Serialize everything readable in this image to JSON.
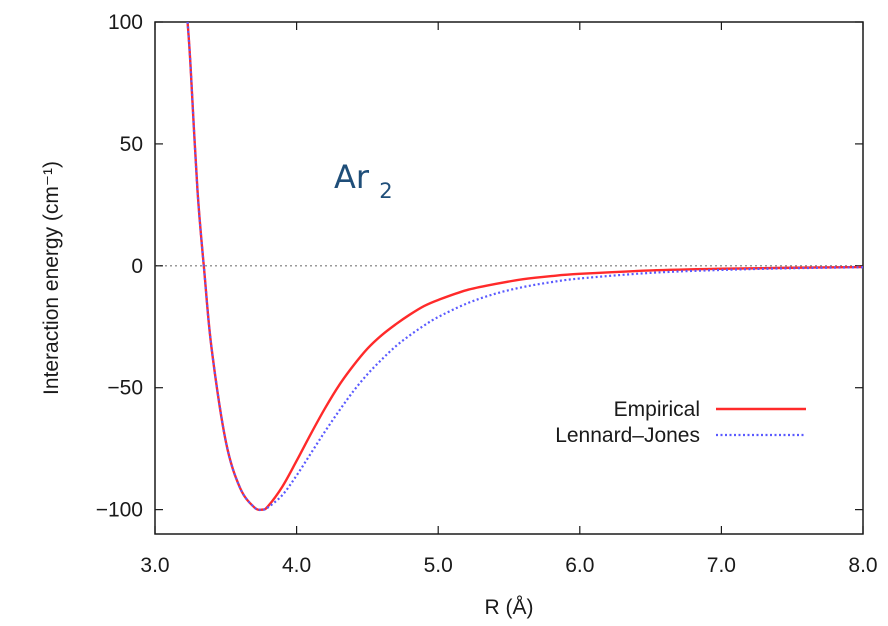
{
  "chart_data": {
    "type": "line",
    "xlabel": "R (Å)",
    "ylabel": "Interaction energy (cm⁻¹)",
    "xlim": [
      3.0,
      8.0
    ],
    "ylim": [
      -110,
      100
    ],
    "xticks": [
      "3.0",
      "4.0",
      "5.0",
      "6.0",
      "7.0",
      "8.0"
    ],
    "yticks": [
      "100",
      "50",
      "0",
      "−50",
      "−100"
    ],
    "ytick_values": [
      100,
      50,
      0,
      -50,
      -100
    ],
    "xtick_values": [
      3.0,
      4.0,
      5.0,
      6.0,
      7.0,
      8.0
    ],
    "zero_line": true,
    "grid": false,
    "legend_position": "lower-right",
    "annotation": {
      "base": "Ar",
      "subscript": "2"
    },
    "series": [
      {
        "name": "Empirical",
        "color": "#ff2a2a",
        "style": "solid",
        "x": [
          3.23,
          3.25,
          3.3,
          3.35,
          3.4,
          3.5,
          3.6,
          3.7,
          3.76,
          3.8,
          3.9,
          4.0,
          4.1,
          4.2,
          4.3,
          4.4,
          4.5,
          4.6,
          4.7,
          4.8,
          4.9,
          5.0,
          5.2,
          5.4,
          5.6,
          5.8,
          6.0,
          6.5,
          7.0,
          7.5,
          8.0
        ],
        "y": [
          100,
          83,
          31,
          -3.5,
          -34,
          -72,
          -91,
          -99,
          -100,
          -98.5,
          -90.5,
          -80,
          -69,
          -58.5,
          -49,
          -41,
          -34,
          -28.5,
          -24,
          -20,
          -16.5,
          -14,
          -10,
          -7.5,
          -5.5,
          -4.2,
          -3.3,
          -1.9,
          -1.2,
          -0.8,
          -0.5
        ]
      },
      {
        "name": "Lennard–Jones",
        "color": "#5a5aff",
        "style": "dotted",
        "x": [
          3.23,
          3.25,
          3.3,
          3.35,
          3.4,
          3.5,
          3.6,
          3.7,
          3.76,
          3.8,
          3.9,
          4.0,
          4.1,
          4.2,
          4.3,
          4.4,
          4.5,
          4.6,
          4.7,
          4.8,
          4.9,
          5.0,
          5.2,
          5.4,
          5.6,
          5.8,
          6.0,
          6.5,
          7.0,
          7.5,
          8.0
        ],
        "y": [
          100,
          83,
          31,
          -3.5,
          -34,
          -72,
          -91,
          -99,
          -100,
          -99,
          -94,
          -86,
          -77,
          -68,
          -59.5,
          -51.5,
          -44.5,
          -38.5,
          -33,
          -28.5,
          -24.5,
          -21,
          -15.5,
          -11.5,
          -8.7,
          -6.7,
          -5.2,
          -2.9,
          -1.7,
          -1.0,
          -0.6
        ]
      }
    ]
  }
}
